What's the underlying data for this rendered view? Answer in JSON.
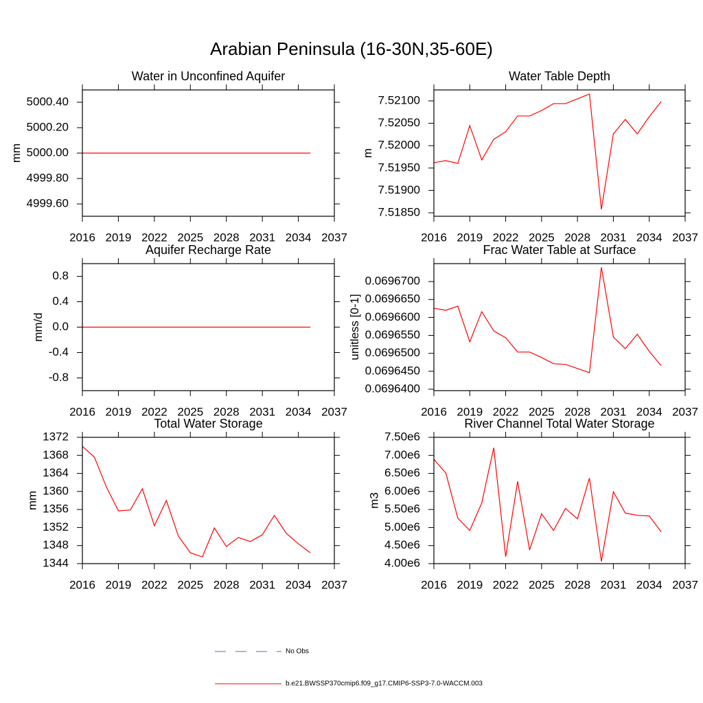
{
  "title": "Arabian Peninsula (16-30N,35-60E)",
  "chart_data": [
    {
      "type": "line",
      "title": "Water in Unconfined Aquifer",
      "ylabel": "mm",
      "color": "#ff0000",
      "x": [
        2016,
        2017,
        2018,
        2019,
        2020,
        2021,
        2022,
        2023,
        2024,
        2025,
        2026,
        2027,
        2028,
        2029,
        2030,
        2031,
        2032,
        2033,
        2034,
        2035
      ],
      "values": [
        5000,
        5000,
        5000,
        5000,
        5000,
        5000,
        5000,
        5000,
        5000,
        5000,
        5000,
        5000,
        5000,
        5000,
        5000,
        5000,
        5000,
        5000,
        5000,
        5000
      ],
      "xlim": [
        2016,
        2037
      ],
      "xticks": [
        2016,
        2019,
        2022,
        2025,
        2028,
        2031,
        2034,
        2037
      ],
      "ylim": [
        4999.503,
        5000.497
      ],
      "yticks": [
        {
          "value": 4999.6,
          "label": "4999.60"
        },
        {
          "value": 4999.8,
          "label": "4999.80"
        },
        {
          "value": 5000.0,
          "label": "5000.00"
        },
        {
          "value": 5000.2,
          "label": "5000.20"
        },
        {
          "value": 5000.4,
          "label": "5000.40"
        }
      ]
    },
    {
      "type": "line",
      "title": "Water Table Depth",
      "ylabel": "m",
      "color": "#ff0000",
      "x": [
        2016,
        2017,
        2018,
        2019,
        2020,
        2021,
        2022,
        2023,
        2024,
        2025,
        2026,
        2027,
        2028,
        2029,
        2030,
        2031,
        2032,
        2033,
        2034,
        2035
      ],
      "values": [
        7.51962,
        7.519665,
        7.519604,
        7.520448,
        7.519681,
        7.520141,
        7.52031,
        7.520663,
        7.520663,
        7.520785,
        7.520939,
        7.520939,
        7.521046,
        7.521153,
        7.518576,
        7.520264,
        7.520586,
        7.520264,
        7.520647,
        7.520985
      ],
      "xlim": [
        2016,
        2037
      ],
      "xticks": [
        2016,
        2019,
        2022,
        2025,
        2028,
        2031,
        2034,
        2037
      ],
      "ylim": [
        7.518423,
        7.521245
      ],
      "yticks": [
        {
          "value": 7.5185,
          "label": "7.51850"
        },
        {
          "value": 7.519,
          "label": "7.51900"
        },
        {
          "value": 7.5195,
          "label": "7.51950"
        },
        {
          "value": 7.52,
          "label": "7.52000"
        },
        {
          "value": 7.5205,
          "label": "7.52050"
        },
        {
          "value": 7.521,
          "label": "7.52100"
        }
      ]
    },
    {
      "type": "line",
      "title": "Aquifer Recharge Rate",
      "ylabel": "mm/d",
      "color": "#ff0000",
      "x": [
        2016,
        2017,
        2018,
        2019,
        2020,
        2021,
        2022,
        2023,
        2024,
        2025,
        2026,
        2027,
        2028,
        2029,
        2030,
        2031,
        2032,
        2033,
        2034,
        2035
      ],
      "values": [
        0,
        0,
        0,
        0,
        0,
        0,
        0,
        0,
        0,
        0,
        0,
        0,
        0,
        0,
        0,
        0,
        0,
        0,
        0,
        0
      ],
      "xlim": [
        2016,
        2037
      ],
      "xticks": [
        2016,
        2019,
        2022,
        2025,
        2028,
        2031,
        2034,
        2037
      ],
      "ylim": [
        -1,
        1
      ],
      "yticks": [
        -0.8,
        -0.4,
        {
          "value": 0,
          "label": "0.0"
        },
        0.4,
        0.8
      ]
    },
    {
      "type": "line",
      "title": "Frac Water Table at Surface",
      "ylabel": "unitless [0-1]",
      "color": "#ff0000",
      "x": [
        2016,
        2017,
        2018,
        2019,
        2020,
        2021,
        2022,
        2023,
        2024,
        2025,
        2026,
        2027,
        2028,
        2029,
        2030,
        2031,
        2032,
        2033,
        2034,
        2035
      ],
      "values": [
        0.06966256,
        0.06966199,
        0.06966313,
        0.06965321,
        0.0696616,
        0.06965626,
        0.06965435,
        0.06965035,
        0.06965035,
        0.06964882,
        0.0696471,
        0.06964691,
        0.06964577,
        0.06964462,
        0.06967401,
        0.06965455,
        0.0696513,
        0.06965531,
        0.06965054,
        0.06964653
      ],
      "xlim": [
        2016,
        2037
      ],
      "xticks": [
        2016,
        2019,
        2022,
        2025,
        2028,
        2031,
        2034,
        2037
      ],
      "ylim": [
        0.0696396,
        0.069675
      ],
      "yticks": [
        {
          "value": 0.06964,
          "label": "0.0696400"
        },
        {
          "value": 0.069645,
          "label": "0.0696450"
        },
        {
          "value": 0.06965,
          "label": "0.0696500"
        },
        {
          "value": 0.069655,
          "label": "0.0696550"
        },
        {
          "value": 0.06966,
          "label": "0.0696600"
        },
        {
          "value": 0.069665,
          "label": "0.0696650"
        },
        {
          "value": 0.06967,
          "label": "0.0696700"
        }
      ]
    },
    {
      "type": "line",
      "title": "Total Water Storage",
      "ylabel": "mm",
      "color": "#ff0000",
      "x": [
        2016,
        2017,
        2018,
        2019,
        2020,
        2021,
        2022,
        2023,
        2024,
        2025,
        2026,
        2027,
        2028,
        2029,
        2030,
        2031,
        2032,
        2033,
        2034,
        2035
      ],
      "values": [
        1370.0,
        1367.6,
        1361.0,
        1355.7,
        1355.9,
        1360.6,
        1352.4,
        1358.0,
        1350.1,
        1346.4,
        1345.5,
        1351.9,
        1347.8,
        1349.8,
        1348.9,
        1350.4,
        1354.7,
        1350.7,
        1348.4,
        1346.4
      ],
      "xlim": [
        2016,
        2037
      ],
      "xticks": [
        2016,
        2019,
        2022,
        2025,
        2028,
        2031,
        2034,
        2037
      ],
      "ylim": [
        1344,
        1372
      ],
      "yticks": [
        1344,
        1348,
        1352,
        1356,
        1360,
        1364,
        1368,
        1372
      ]
    },
    {
      "type": "line",
      "title": "River Channel Total Water Storage",
      "ylabel": "m3",
      "color": "#ff0000",
      "x": [
        2016,
        2017,
        2018,
        2019,
        2020,
        2021,
        2022,
        2023,
        2024,
        2025,
        2026,
        2027,
        2028,
        2029,
        2030,
        2031,
        2032,
        2033,
        2034,
        2035
      ],
      "values": [
        6890000,
        6510000,
        5260000,
        4920000,
        5680000,
        7210000,
        4190000,
        6280000,
        4380000,
        5380000,
        4920000,
        5530000,
        5240000,
        6370000,
        4060000,
        5990000,
        5400000,
        5340000,
        5320000,
        4880000
      ],
      "xlim": [
        2016,
        2037
      ],
      "xticks": [
        2016,
        2019,
        2022,
        2025,
        2028,
        2031,
        2034,
        2037
      ],
      "ylim": [
        4000000,
        7500000
      ],
      "yticks": [
        {
          "value": 4000000,
          "label": "4.00e6"
        },
        {
          "value": 4500000,
          "label": "4.50e6"
        },
        {
          "value": 5000000,
          "label": "5.00e6"
        },
        {
          "value": 5500000,
          "label": "5.50e6"
        },
        {
          "value": 6000000,
          "label": "6.00e6"
        },
        {
          "value": 6500000,
          "label": "6.50e6"
        },
        {
          "value": 7000000,
          "label": "7.00e6"
        },
        {
          "value": 7500000,
          "label": "7.50e6"
        }
      ]
    }
  ],
  "legend": [
    {
      "name": "No Obs",
      "color": "#5a6ab8",
      "dashed": true
    },
    {
      "name": "b.e21.BWSSP370cmip6.f09_g17.CMIP6-SSP3-7.0-WACCM.003",
      "color": "#ff0000",
      "dashed": false
    }
  ]
}
